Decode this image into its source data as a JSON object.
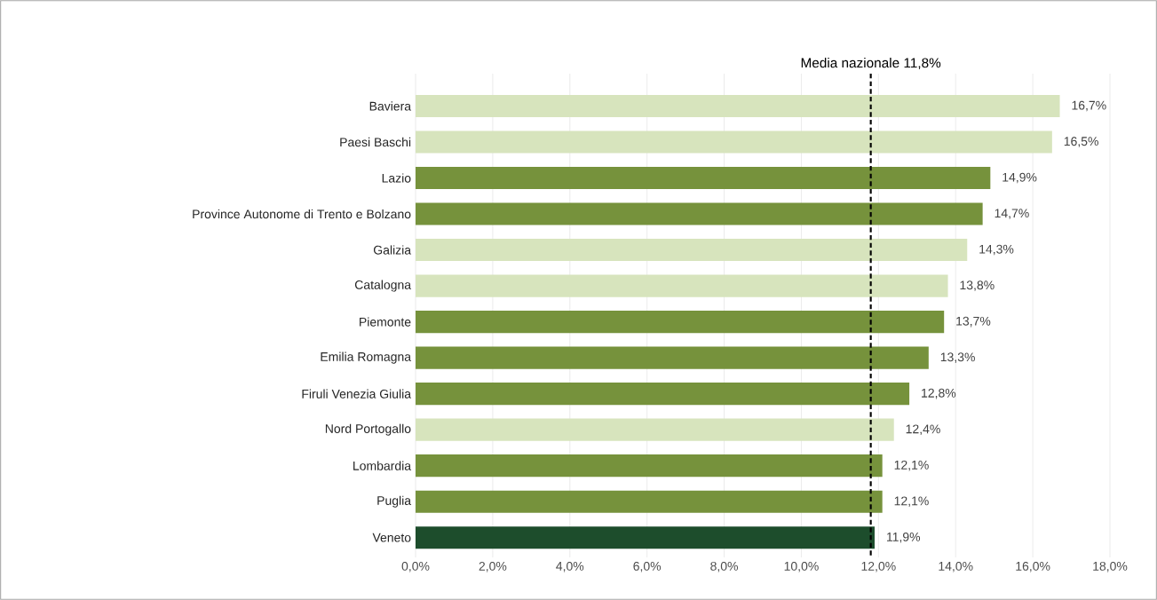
{
  "chart_data": {
    "type": "bar",
    "orientation": "horizontal",
    "categories": [
      "Baviera",
      "Paesi Baschi",
      "Lazio",
      "Province Autonome di Trento e Bolzano",
      "Galizia",
      "Catalogna",
      "Piemonte",
      "Emilia Romagna",
      "Firuli Venezia Giulia",
      "Nord Portogallo",
      "Lombardia",
      "Puglia",
      "Veneto"
    ],
    "values": [
      16.7,
      16.5,
      14.9,
      14.7,
      14.3,
      13.8,
      13.7,
      13.3,
      12.8,
      12.4,
      12.1,
      12.1,
      11.9
    ],
    "colors": [
      "#d7e4bd",
      "#d7e4bd",
      "#76923c",
      "#76923c",
      "#d7e4bd",
      "#d7e4bd",
      "#76923c",
      "#76923c",
      "#76923c",
      "#d7e4bd",
      "#76923c",
      "#76923c",
      "#1d4d2c"
    ],
    "value_labels": [
      "16,7%",
      "16,5%",
      "14,9%",
      "14,7%",
      "14,3%",
      "13,8%",
      "13,7%",
      "13,3%",
      "12,8%",
      "12,4%",
      "12,1%",
      "12,1%",
      "11,9%"
    ],
    "xlim": [
      0,
      18
    ],
    "xticks": [
      {
        "value": 0,
        "label": "0,0%"
      },
      {
        "value": 2,
        "label": "2,0%"
      },
      {
        "value": 4,
        "label": "4,0%"
      },
      {
        "value": 6,
        "label": "6,0%"
      },
      {
        "value": 8,
        "label": "8,0%"
      },
      {
        "value": 10,
        "label": "10,0%"
      },
      {
        "value": 12,
        "label": "12,0%"
      },
      {
        "value": 14,
        "label": "14,0%"
      },
      {
        "value": 16,
        "label": "16,0%"
      },
      {
        "value": 18,
        "label": "18,0%"
      }
    ],
    "grid": "x",
    "ref_lines": [
      {
        "axis": "x",
        "value": 11.8,
        "label": "Media nazionale 11,8%",
        "line_style": "dashed",
        "color": "#000000"
      }
    ]
  }
}
